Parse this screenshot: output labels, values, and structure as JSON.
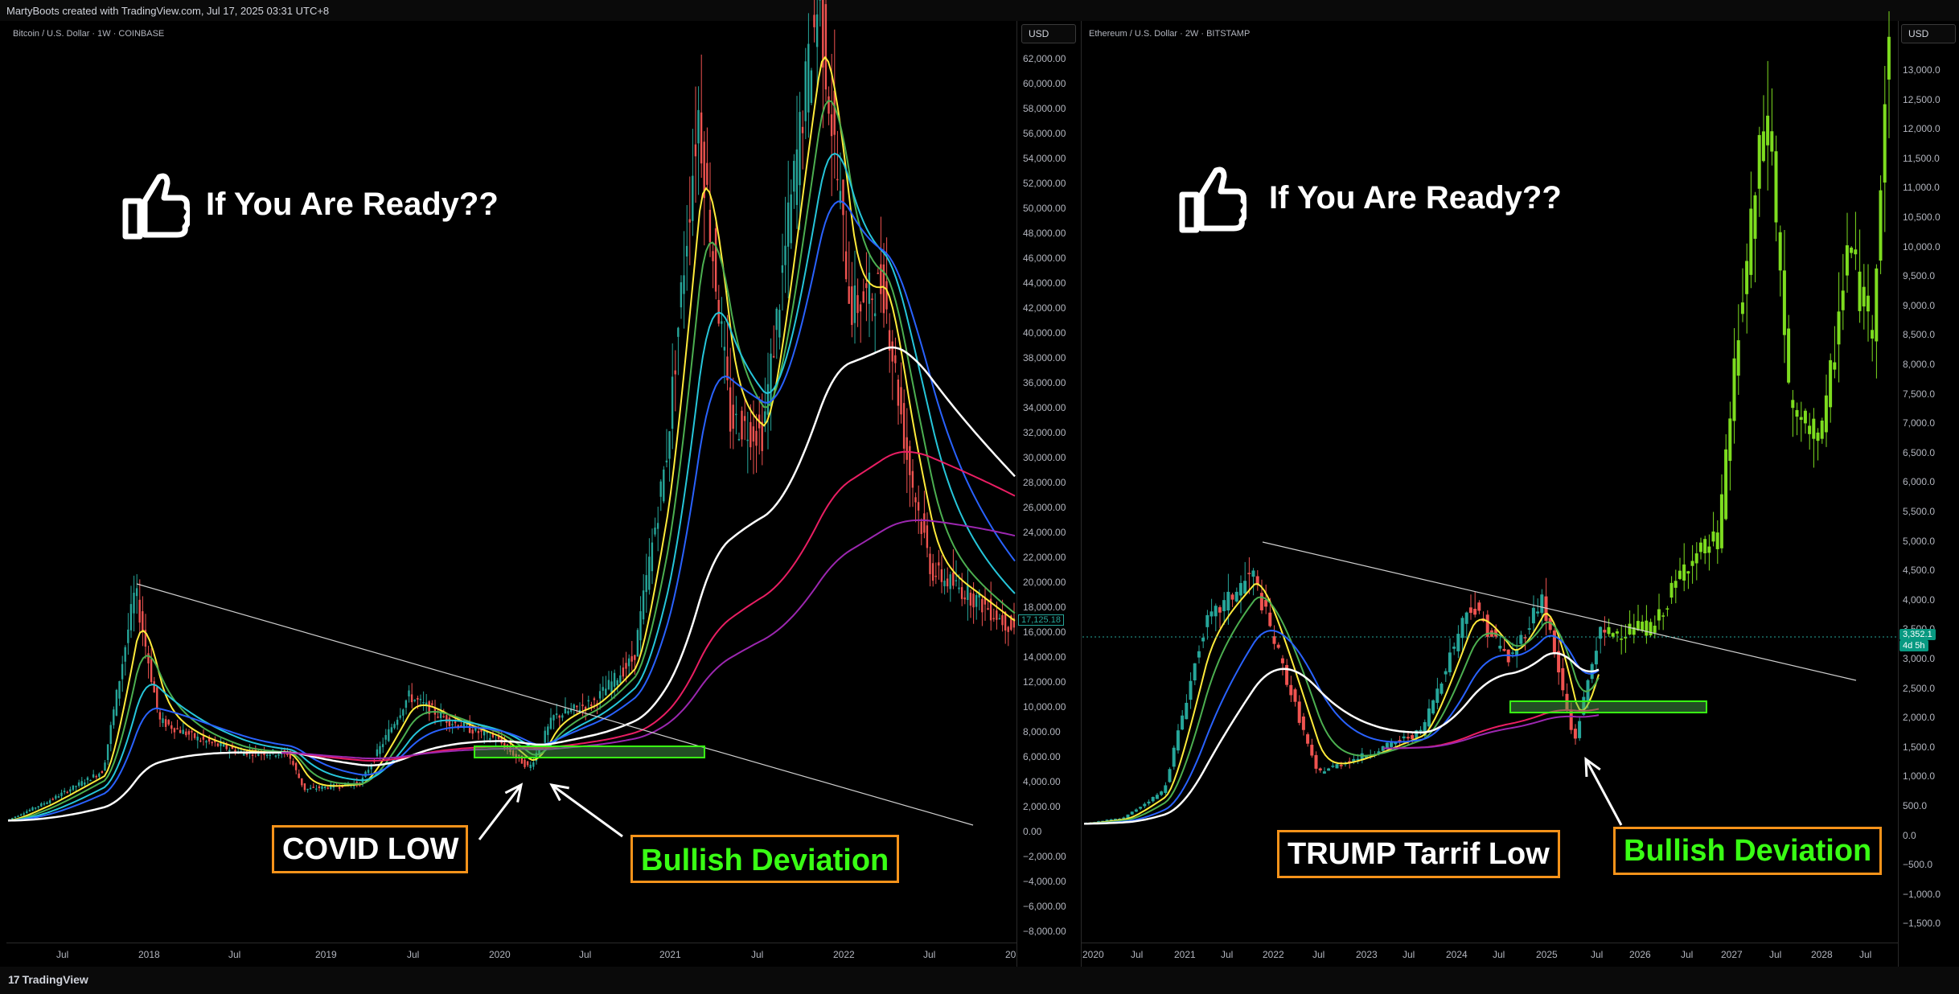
{
  "header": {
    "credit": "MartyBoots created with TradingView.com, Jul 17, 2025 03:31 UTC+8"
  },
  "footer": {
    "brand": "TradingView"
  },
  "left": {
    "symbol": "Bitcoin / U.S. Dollar · 1W · COINBASE",
    "currency": "USD",
    "headline": "If You Are Ready??",
    "label_low": "COVID LOW",
    "label_bull": "Bullish Deviation",
    "price_badge": "17,125.18",
    "yticks": [
      "62,000.00",
      "60,000.00",
      "58,000.00",
      "56,000.00",
      "54,000.00",
      "52,000.00",
      "50,000.00",
      "48,000.00",
      "46,000.00",
      "44,000.00",
      "42,000.00",
      "40,000.00",
      "38,000.00",
      "36,000.00",
      "34,000.00",
      "32,000.00",
      "30,000.00",
      "28,000.00",
      "26,000.00",
      "24,000.00",
      "22,000.00",
      "20,000.00",
      "18,000.00",
      "16,000.00",
      "14,000.00",
      "12,000.00",
      "10,000.00",
      "8,000.00",
      "6,000.00",
      "4,000.00",
      "2,000.00",
      "0.00",
      "−2,000.00",
      "−4,000.00",
      "−6,000.00",
      "−8,000.00"
    ],
    "xticks": [
      "Jul",
      "2018",
      "Jul",
      "2019",
      "Jul",
      "2020",
      "Jul",
      "2021",
      "Jul",
      "2022",
      "Jul",
      "20"
    ]
  },
  "right": {
    "symbol": "Ethereum / U.S. Dollar · 2W · BITSTAMP",
    "currency": "USD",
    "headline": "If You Are Ready??",
    "label_low": "TRUMP Tarrif Low",
    "label_bull": "Bullish Deviation",
    "price_badge": "3,352.1",
    "price_badge_sub": "4d 5h",
    "yticks": [
      "13,000.0",
      "12,500.0",
      "12,000.0",
      "11,500.0",
      "11,000.0",
      "10,500.0",
      "10,000.0",
      "9,500.0",
      "9,000.0",
      "8,500.0",
      "8,000.0",
      "7,500.0",
      "7,000.0",
      "6,500.0",
      "6,000.0",
      "5,500.0",
      "5,000.0",
      "4,500.0",
      "4,000.0",
      "3,500.0",
      "3,000.0",
      "2,500.0",
      "2,000.0",
      "1,500.0",
      "1,000.0",
      "500.0",
      "0.0",
      "−500.0",
      "−1,000.0",
      "−1,500.0"
    ],
    "xticks": [
      "2020",
      "Jul",
      "2021",
      "Jul",
      "2022",
      "Jul",
      "2023",
      "Jul",
      "2024",
      "Jul",
      "2025",
      "Jul",
      "2026",
      "Jul",
      "2027",
      "Jul",
      "2028",
      "Jul"
    ]
  },
  "chart_data": [
    {
      "type": "line",
      "title": "Bitcoin / U.S. Dollar · 1W · COINBASE",
      "ylim": [
        -8000,
        62000
      ],
      "x": [
        "2017-04",
        "2017-07",
        "2017-10",
        "2017-12",
        "2018-02",
        "2018-04",
        "2018-07",
        "2018-10",
        "2018-12",
        "2019-03",
        "2019-06",
        "2019-07",
        "2019-10",
        "2019-12",
        "2020-03",
        "2020-05",
        "2020-07",
        "2020-10",
        "2020-12",
        "2021-01",
        "2021-04",
        "2021-05",
        "2021-07",
        "2021-09",
        "2021-11",
        "2022-01",
        "2022-03",
        "2022-05",
        "2022-07",
        "2022-09",
        "2022-11",
        "2022-12"
      ],
      "series": [
        {
          "values": [
            1100,
            2700,
            5000,
            19500,
            9000,
            8000,
            6500,
            6300,
            3500,
            3900,
            9000,
            11500,
            8300,
            7200,
            5000,
            9500,
            9200,
            11500,
            23000,
            33000,
            58000,
            38000,
            33000,
            47000,
            67000,
            42000,
            44000,
            30000,
            21000,
            19500,
            16500,
            16800
          ]
        }
      ],
      "annotations": [
        "COVID LOW",
        "Bullish Deviation",
        "If You Are Ready??"
      ],
      "last_price": "17,125.18"
    },
    {
      "type": "line",
      "title": "Ethereum / U.S. Dollar · 2W · BITSTAMP",
      "ylim": [
        -1500,
        13000
      ],
      "x": [
        "2020-01",
        "2020-07",
        "2021-01",
        "2021-05",
        "2021-11",
        "2022-06",
        "2023-01",
        "2023-07",
        "2024-03",
        "2024-08",
        "2024-12",
        "2025-04",
        "2025-07",
        "2026-01",
        "2026-07",
        "2027-01",
        "2027-07",
        "2028-01",
        "2028-07"
      ],
      "series": [
        {
          "values": [
            130,
            240,
            730,
            4000,
            4800,
            1000,
            1200,
            1900,
            4000,
            2300,
            4000,
            1500,
            3350,
            3400,
            3600,
            6500,
            12500,
            7000,
            13300
          ]
        }
      ],
      "annotations": [
        "TRUMP Tarrif Low",
        "Bullish Deviation",
        "If You Are Ready??"
      ],
      "last_price": "3,352.1"
    }
  ]
}
